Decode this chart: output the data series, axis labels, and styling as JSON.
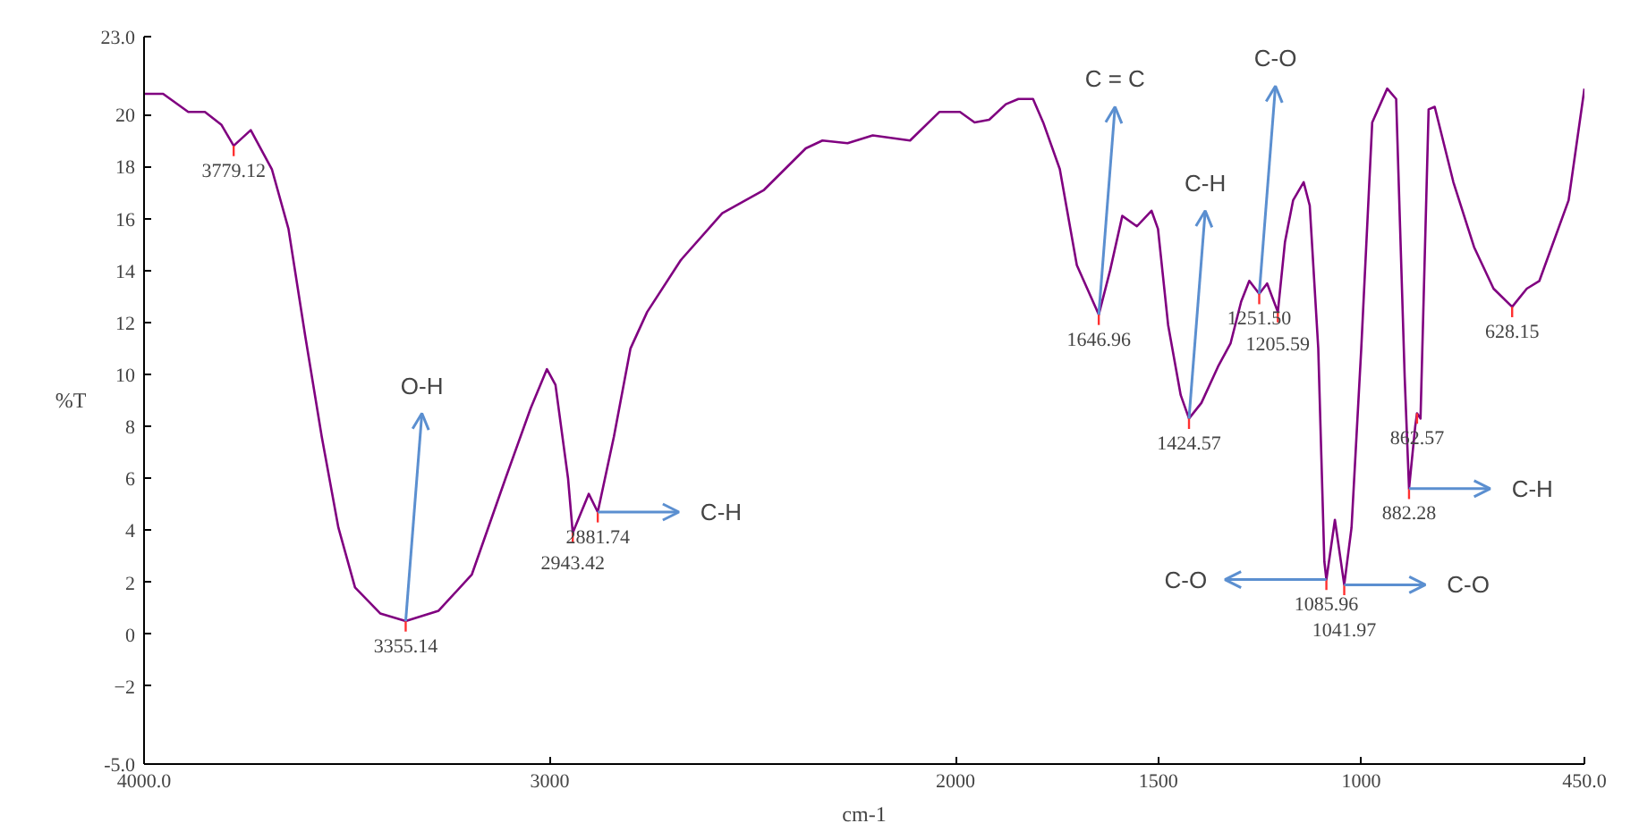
{
  "chart_data": {
    "type": "line",
    "xlabel": "cm-1",
    "ylabel": "%T",
    "xlim": [
      4000,
      450
    ],
    "ylim": [
      -5,
      23
    ],
    "xticks": [
      {
        "value": 4000,
        "label": "4000.0"
      },
      3000,
      2000,
      1500,
      1000,
      {
        "value": 450,
        "label": "450.0"
      }
    ],
    "yticks": [
      {
        "value": -5,
        "label": "-5.0"
      },
      -2,
      0,
      2,
      4,
      6,
      8,
      10,
      12,
      14,
      16,
      18,
      20,
      {
        "value": 23,
        "label": "23.0"
      }
    ],
    "grid": false,
    "marker": "none",
    "line_style": "solid",
    "series": [
      {
        "color": "#800080",
        "x": [
          4000,
          3953,
          3891,
          3850,
          3809,
          3779.12,
          3737,
          3685,
          3644,
          3603,
          3562,
          3521,
          3480,
          3418,
          3355.14,
          3274,
          3192,
          3109,
          3047,
          3007,
          2986,
          2955,
          2943.42,
          2904,
          2881.74,
          2842,
          2801,
          2760,
          2677,
          2575,
          2472,
          2369,
          2328,
          2266,
          2204,
          2112,
          2040,
          1989,
          1953,
          1917,
          1876,
          1845,
          1809,
          1784,
          1743,
          1701,
          1646.96,
          1619,
          1589,
          1553,
          1517,
          1501,
          1476,
          1445,
          1424.57,
          1394,
          1353,
          1322,
          1296,
          1276,
          1251.5,
          1232,
          1205.59,
          1188,
          1168,
          1142,
          1127,
          1106,
          1091,
          1085.96,
          1065,
          1041.97,
          1024,
          1000,
          973,
          936,
          914,
          893,
          882.28,
          867,
          862.57,
          854,
          834,
          819,
          773,
          722,
          674,
          628.15,
          592,
          561,
          489,
          450
        ],
        "values": [
          20.8,
          20.8,
          20.1,
          20.1,
          19.6,
          18.8,
          19.4,
          17.9,
          15.6,
          11.5,
          7.6,
          4.1,
          1.8,
          0.8,
          0.5,
          0.9,
          2.3,
          6.0,
          8.7,
          10.2,
          9.6,
          6.0,
          3.9,
          5.4,
          4.7,
          7.6,
          11.0,
          12.4,
          14.4,
          16.2,
          17.1,
          18.7,
          19.0,
          18.9,
          19.2,
          19.0,
          20.1,
          20.1,
          19.7,
          19.8,
          20.4,
          20.6,
          20.6,
          19.7,
          17.9,
          14.2,
          12.3,
          14.0,
          16.1,
          15.7,
          16.3,
          15.6,
          11.9,
          9.2,
          8.3,
          8.9,
          10.3,
          11.2,
          12.8,
          13.6,
          13.1,
          13.5,
          12.4,
          15.1,
          16.7,
          17.4,
          16.5,
          11.0,
          2.8,
          2.1,
          4.4,
          1.9,
          4.1,
          11.0,
          19.7,
          21.0,
          20.6,
          9.9,
          5.6,
          8.0,
          8.5,
          8.3,
          20.2,
          20.3,
          17.4,
          14.9,
          13.3,
          12.6,
          13.3,
          13.6,
          16.7,
          21.0
        ]
      }
    ],
    "annotations": [
      {
        "text": "3779.12",
        "x": 3779.12,
        "y": 18.8
      },
      {
        "text": "3355.14",
        "x": 3355.14,
        "y": 0.5
      },
      {
        "text": "2943.42",
        "x": 2943.42,
        "y": 3.9
      },
      {
        "text": "2881.74",
        "x": 2881.74,
        "y": 4.7
      },
      {
        "text": "1646.96",
        "x": 1646.96,
        "y": 12.3
      },
      {
        "text": "1424.57",
        "x": 1424.57,
        "y": 8.3
      },
      {
        "text": "1251.50",
        "x": 1251.5,
        "y": 13.1
      },
      {
        "text": "1205.59",
        "x": 1205.59,
        "y": 12.4
      },
      {
        "text": "1085.96",
        "x": 1085.96,
        "y": 2.1
      },
      {
        "text": "1041.97",
        "x": 1041.97,
        "y": 1.9
      },
      {
        "text": "882.28",
        "x": 882.28,
        "y": 5.6
      },
      {
        "text": "862.57",
        "x": 862.57,
        "y": 8.5
      },
      {
        "text": "628.15",
        "x": 628.15,
        "y": 12.6
      },
      {
        "text": "O-H",
        "x": 3355.14,
        "y": 0.5
      },
      {
        "text": "C-H",
        "x": 2881.74,
        "y": 4.7
      },
      {
        "text": "C = C",
        "x": 1646.96,
        "y": 12.3
      },
      {
        "text": "C-H",
        "x": 1424.57,
        "y": 8.3
      },
      {
        "text": "C-O",
        "x": 1251.5,
        "y": 13.1
      },
      {
        "text": "C-O",
        "x": 1085.96,
        "y": 2.1
      },
      {
        "text": "C-O",
        "x": 1041.97,
        "y": 1.9
      },
      {
        "text": "C-H",
        "x": 882.28,
        "y": 5.6
      }
    ]
  }
}
